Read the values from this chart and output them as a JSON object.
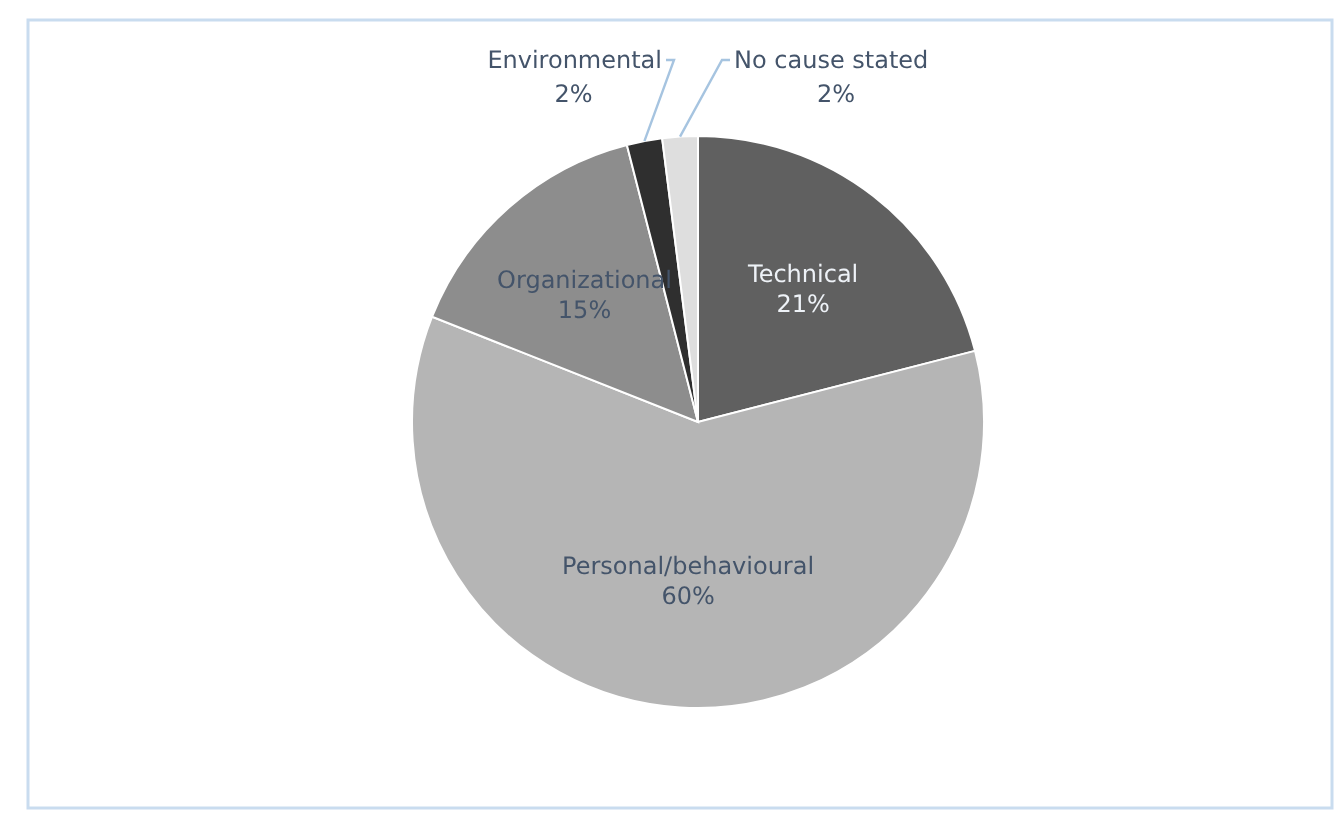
{
  "chart_data": {
    "type": "pie",
    "categories": [
      "Technical",
      "Personal/behavioural",
      "Organizational",
      "Environmental",
      "No cause stated"
    ],
    "values": [
      21,
      60,
      15,
      2,
      2
    ],
    "colors": [
      "#606060",
      "#b5b5b5",
      "#8d8d8d",
      "#2f2f2f",
      "#dedede"
    ],
    "value_labels": [
      "21%",
      "60%",
      "15%",
      "2%",
      "2%"
    ],
    "legend": false
  }
}
